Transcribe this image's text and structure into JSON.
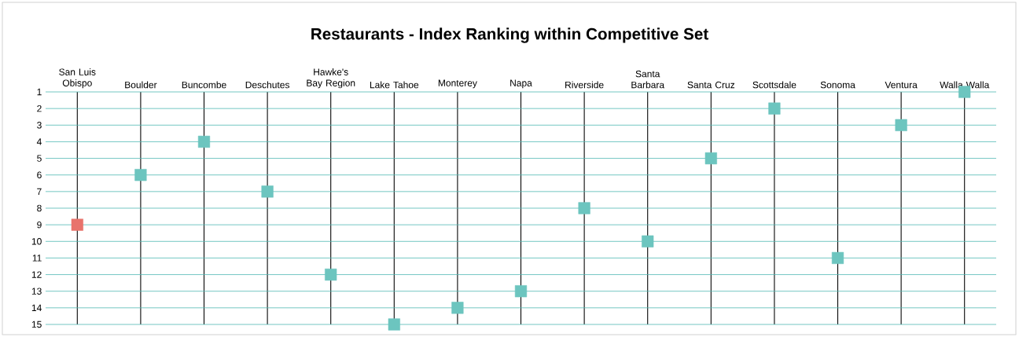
{
  "chart_data": {
    "type": "scatter",
    "title": "Restaurants - Index Ranking within Competitive Set",
    "categories": [
      "San Luis Obispo",
      "Boulder",
      "Buncombe",
      "Deschutes",
      "Hawke's Bay Region",
      "Lake Tahoe",
      "Monterey",
      "Napa",
      "Riverside",
      "Santa Barbara",
      "Santa Cruz",
      "Scottsdale",
      "Sonoma",
      "Ventura",
      "Walla Walla"
    ],
    "values": [
      9,
      6,
      4,
      7,
      12,
      15,
      14,
      13,
      8,
      10,
      5,
      2,
      11,
      3,
      1
    ],
    "colors": [
      "#e8736c",
      "#6cc5bf",
      "#6cc5bf",
      "#6cc5bf",
      "#6cc5bf",
      "#6cc5bf",
      "#6cc5bf",
      "#6cc5bf",
      "#6cc5bf",
      "#6cc5bf",
      "#6cc5bf",
      "#6cc5bf",
      "#6cc5bf",
      "#6cc5bf",
      "#6cc5bf"
    ],
    "ylim": [
      15,
      1
    ],
    "yticks": [
      1,
      2,
      3,
      4,
      5,
      6,
      7,
      8,
      9,
      10,
      11,
      12,
      13,
      14,
      15
    ],
    "grid": true,
    "marker": "square"
  }
}
